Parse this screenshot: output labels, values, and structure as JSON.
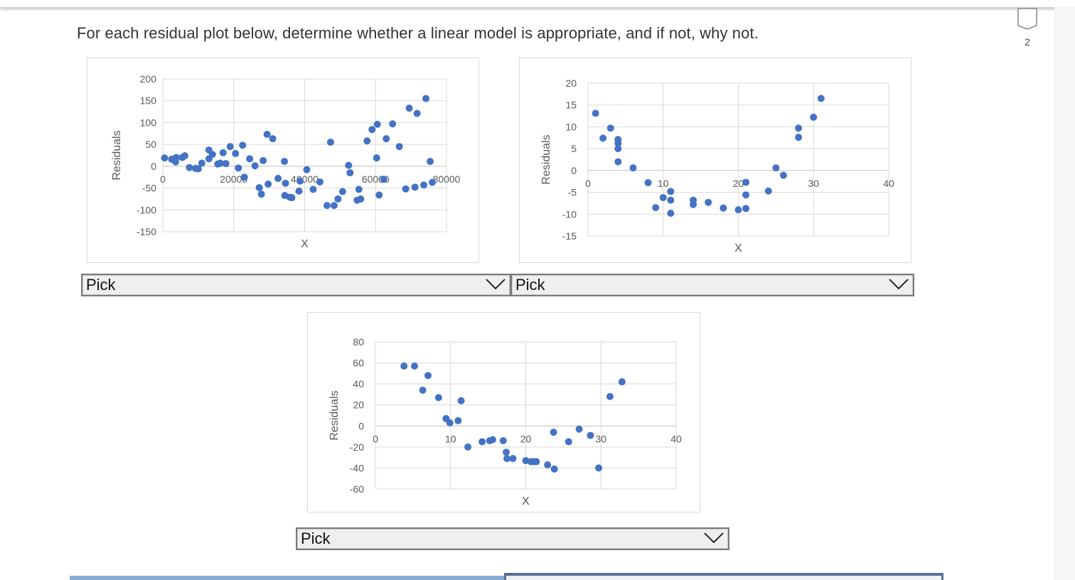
{
  "question": {
    "prompt": "For each residual plot below, determine whether a linear model is appropriate, and if not, why not.",
    "number": "2",
    "flag_icon": "bookmark-flag-icon"
  },
  "dropdowns": [
    {
      "selected": "Pick",
      "icon": "chevron-down-icon"
    },
    {
      "selected": "Pick",
      "icon": "chevron-down-icon"
    },
    {
      "selected": "Pick",
      "icon": "chevron-down-icon"
    }
  ],
  "colors": {
    "marker": "#4472c4",
    "grid": "#d9d9d9",
    "axis_text": "#595959"
  },
  "chart_data": [
    {
      "type": "scatter",
      "title": "",
      "xlabel": "X",
      "ylabel": "Residuals",
      "xlim": [
        0,
        80000
      ],
      "ylim": [
        -150,
        200
      ],
      "xticks": [
        "0",
        "20000",
        "40000",
        "60000",
        "80000"
      ],
      "yticks": [
        "200",
        "150",
        "100",
        "50",
        "0",
        "-50",
        "-100",
        "-150"
      ],
      "grid": true,
      "points": [
        [
          500,
          19
        ],
        [
          2500,
          16
        ],
        [
          3200,
          14
        ],
        [
          3600,
          10
        ],
        [
          3800,
          20
        ],
        [
          5500,
          20
        ],
        [
          6200,
          24
        ],
        [
          7500,
          -3
        ],
        [
          9200,
          -5
        ],
        [
          10000,
          -6
        ],
        [
          11000,
          7
        ],
        [
          13000,
          37
        ],
        [
          13000,
          17
        ],
        [
          14000,
          27
        ],
        [
          15500,
          5
        ],
        [
          16200,
          7
        ],
        [
          17000,
          31
        ],
        [
          17800,
          6
        ],
        [
          19000,
          45
        ],
        [
          20500,
          29
        ],
        [
          21300,
          -4
        ],
        [
          22500,
          48
        ],
        [
          23000,
          -25
        ],
        [
          24500,
          17
        ],
        [
          26000,
          1
        ],
        [
          27200,
          -49
        ],
        [
          27800,
          -64
        ],
        [
          28300,
          13
        ],
        [
          29400,
          73
        ],
        [
          29700,
          -41
        ],
        [
          31000,
          63
        ],
        [
          32500,
          -28
        ],
        [
          34300,
          11
        ],
        [
          34400,
          -67
        ],
        [
          34600,
          -39
        ],
        [
          35800,
          -71
        ],
        [
          36400,
          -72
        ],
        [
          38700,
          -34
        ],
        [
          38400,
          -57
        ],
        [
          40600,
          -8
        ],
        [
          42400,
          -53
        ],
        [
          44300,
          -36
        ],
        [
          46300,
          -90
        ],
        [
          47300,
          55
        ],
        [
          48300,
          -90
        ],
        [
          49400,
          -75
        ],
        [
          50700,
          -58
        ],
        [
          52400,
          2
        ],
        [
          52800,
          -15
        ],
        [
          54800,
          -78
        ],
        [
          55300,
          -53
        ],
        [
          55800,
          -75
        ],
        [
          57600,
          58
        ],
        [
          59000,
          84
        ],
        [
          60500,
          96
        ],
        [
          60300,
          19
        ],
        [
          61000,
          -66
        ],
        [
          62300,
          -30
        ],
        [
          63000,
          63
        ],
        [
          64800,
          97
        ],
        [
          66700,
          45
        ],
        [
          68500,
          -52
        ],
        [
          69500,
          133
        ],
        [
          71100,
          -48
        ],
        [
          71700,
          121
        ],
        [
          73600,
          -43
        ],
        [
          74200,
          155
        ],
        [
          75400,
          11
        ],
        [
          76000,
          -37
        ]
      ]
    },
    {
      "type": "scatter",
      "title": "",
      "xlabel": "X",
      "ylabel": "Residuals",
      "xlim": [
        0,
        40
      ],
      "ylim": [
        -15,
        20
      ],
      "xticks": [
        "0",
        "10",
        "20",
        "30",
        "40"
      ],
      "yticks": [
        "20",
        "15",
        "10",
        "5",
        "0",
        "-5",
        "-10",
        "-15"
      ],
      "grid": true,
      "points": [
        [
          1,
          13.1
        ],
        [
          2,
          7.4
        ],
        [
          3,
          9.7
        ],
        [
          4,
          7.1
        ],
        [
          4,
          6.2
        ],
        [
          4,
          5
        ],
        [
          4,
          2
        ],
        [
          6,
          0.6
        ],
        [
          8,
          -2.8
        ],
        [
          9,
          -8.5
        ],
        [
          10,
          -6.2
        ],
        [
          11,
          -4.8
        ],
        [
          11,
          -6.8
        ],
        [
          11,
          -9.8
        ],
        [
          14,
          -6.8
        ],
        [
          14,
          -7.8
        ],
        [
          16,
          -7.3
        ],
        [
          18,
          -8.6
        ],
        [
          20,
          -9
        ],
        [
          21,
          -2.7
        ],
        [
          21,
          -5.6
        ],
        [
          21,
          -8.7
        ],
        [
          24,
          -4.7
        ],
        [
          25,
          0.6
        ],
        [
          26,
          -1.1
        ],
        [
          28,
          9.7
        ],
        [
          28,
          7.6
        ],
        [
          30,
          12.2
        ],
        [
          31,
          16.5
        ]
      ]
    },
    {
      "type": "scatter",
      "title": "",
      "xlabel": "X",
      "ylabel": "Residuals",
      "xlim": [
        0,
        40
      ],
      "ylim": [
        -60,
        80
      ],
      "xticks": [
        "0",
        "10",
        "20",
        "30",
        "40"
      ],
      "yticks": [
        "80",
        "60",
        "40",
        "20",
        "0",
        "-20",
        "-40",
        "-60"
      ],
      "grid": true,
      "points": [
        [
          3.8,
          57
        ],
        [
          5.2,
          57
        ],
        [
          6.3,
          34
        ],
        [
          7,
          48
        ],
        [
          8.4,
          27
        ],
        [
          9.4,
          7
        ],
        [
          9.9,
          3
        ],
        [
          11,
          5
        ],
        [
          11.4,
          24
        ],
        [
          12.3,
          -20
        ],
        [
          14.2,
          -15
        ],
        [
          15.2,
          -14
        ],
        [
          15.6,
          -13
        ],
        [
          17,
          -14
        ],
        [
          17.4,
          -25
        ],
        [
          17.5,
          -31
        ],
        [
          18.3,
          -31
        ],
        [
          20,
          -33
        ],
        [
          20.7,
          -34
        ],
        [
          21.1,
          -34
        ],
        [
          21.4,
          -34
        ],
        [
          22.9,
          -37
        ],
        [
          23.8,
          -41
        ],
        [
          23.7,
          -6
        ],
        [
          25.7,
          -15
        ],
        [
          27.1,
          -3
        ],
        [
          28.6,
          -9
        ],
        [
          29.7,
          -40
        ],
        [
          31.2,
          28
        ],
        [
          32.8,
          42
        ]
      ]
    }
  ]
}
